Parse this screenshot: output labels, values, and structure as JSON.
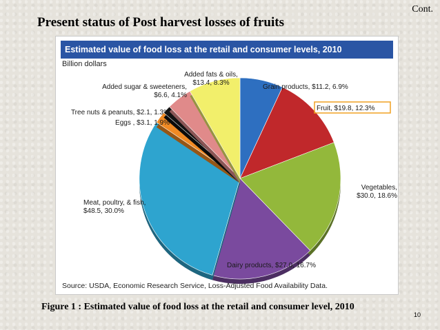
{
  "slide": {
    "cont": "Cont.",
    "title": "Present status of Post harvest losses of fruits",
    "caption": "Figure 1 : Estimated value of food loss at the retail and consumer level, 2010",
    "page_number": "10"
  },
  "chart_data": {
    "type": "pie",
    "title": "Estimated value of food loss at the retail and consumer levels, 2010",
    "unit_label": "Billion dollars",
    "source": "Source:  USDA, Economic Research Service, Loss-Adjusted Food Availability Data.",
    "highlighted": "Fruit",
    "slices": [
      {
        "name": "Grain products",
        "value": 11.2,
        "percent": 6.9,
        "color": "#2e6fc0",
        "label_lines": [
          "Grain products, $11.2, 6.9%"
        ]
      },
      {
        "name": "Fruit",
        "value": 19.8,
        "percent": 12.3,
        "color": "#c0282b",
        "label_lines": [
          "Fruit, $19.8, 12.3%"
        ]
      },
      {
        "name": "Vegetables",
        "value": 30.0,
        "percent": 18.6,
        "color": "#93b83b",
        "label_lines": [
          "Vegetables,",
          "$30.0, 18.6%"
        ]
      },
      {
        "name": "Dairy products",
        "value": 27.0,
        "percent": 16.7,
        "color": "#7a4a9e",
        "label_lines": [
          "Dairy products, $27.0, 16.7%"
        ]
      },
      {
        "name": "Meat, poultry, & fish",
        "value": 48.5,
        "percent": 30.0,
        "color": "#2ea4cf",
        "label_lines": [
          "Meat, poultry, & fish,",
          "$48.5, 30.0%"
        ]
      },
      {
        "name": "Eggs",
        "value": 3.1,
        "percent": 1.9,
        "color": "#f08a24",
        "label_lines": [
          "Eggs , $3.1, 1.9%"
        ]
      },
      {
        "name": "Tree nuts & peanuts",
        "value": 2.1,
        "percent": 1.3,
        "color": "#111111",
        "label_lines": [
          "Tree nuts & peanuts, $2.1, 1.3%"
        ]
      },
      {
        "name": "Added sugar & sweeteners",
        "value": 6.6,
        "percent": 4.1,
        "color": "#e08a8a",
        "label_lines": [
          "Added sugar & sweeteners,",
          "$6.6, 4.1%"
        ]
      },
      {
        "name": "Added fats & oils",
        "value": 13.4,
        "percent": 8.3,
        "color": "#f2ef6b",
        "label_lines": [
          "Added fats & oils,",
          "$13.4, 8.3%"
        ]
      }
    ]
  }
}
